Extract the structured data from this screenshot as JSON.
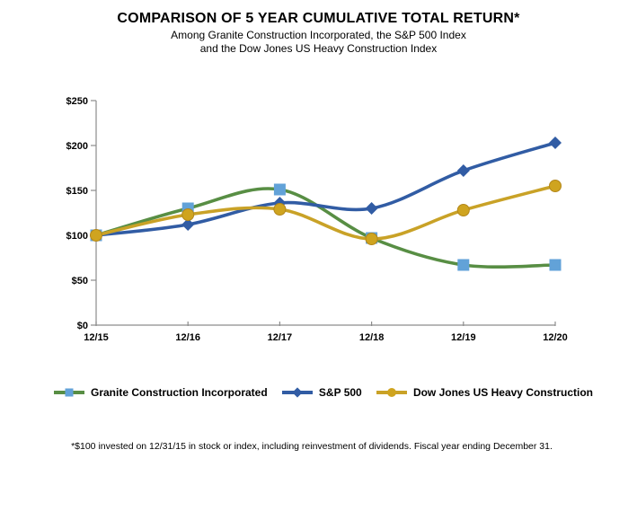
{
  "header": {
    "title": "COMPARISON OF 5 YEAR CUMULATIVE TOTAL RETURN*",
    "subtitle_line1": "Among Granite Construction Incorporated, the S&P 500 Index",
    "subtitle_line2": "and the Dow Jones US Heavy Construction Index"
  },
  "footnote": "*$100 invested on 12/31/15 in stock or index, including reinvestment of dividends.  Fiscal year ending December 31.",
  "chart_data": {
    "type": "line",
    "title": "COMPARISON OF 5 YEAR CUMULATIVE TOTAL RETURN",
    "categories": [
      "12/15",
      "12/16",
      "12/17",
      "12/18",
      "12/19",
      "12/20"
    ],
    "series": [
      {
        "name": "Granite Construction Incorporated",
        "values": [
          100,
          130,
          151,
          97,
          67,
          67
        ],
        "line_color": "#588E44",
        "marker": "square",
        "marker_color": "#62A2D8",
        "marker_edge": "#4E8FC7"
      },
      {
        "name": "S&P 500",
        "values": [
          100,
          112,
          136,
          130,
          172,
          203
        ],
        "line_color": "#315CA4",
        "marker": "diamond",
        "marker_color": "#315CA4",
        "marker_edge": "#315CA4"
      },
      {
        "name": "Dow Jones US Heavy Construction",
        "values": [
          100,
          123,
          129,
          96,
          128,
          155
        ],
        "line_color": "#C9A227",
        "marker": "circle",
        "marker_color": "#CFA41F",
        "marker_edge": "#B3871B"
      }
    ],
    "ylim": [
      0,
      250
    ],
    "y_ticks": [
      {
        "value": 0,
        "label": "$0"
      },
      {
        "value": 50,
        "label": "$50"
      },
      {
        "value": 100,
        "label": "$100"
      },
      {
        "value": 150,
        "label": "$150"
      },
      {
        "value": 200,
        "label": "$200"
      },
      {
        "value": 250,
        "label": "$250"
      }
    ],
    "xlabel": "",
    "ylabel": "",
    "grid": false,
    "legend_position": "bottom",
    "axis_color": "#8C8C8C"
  }
}
